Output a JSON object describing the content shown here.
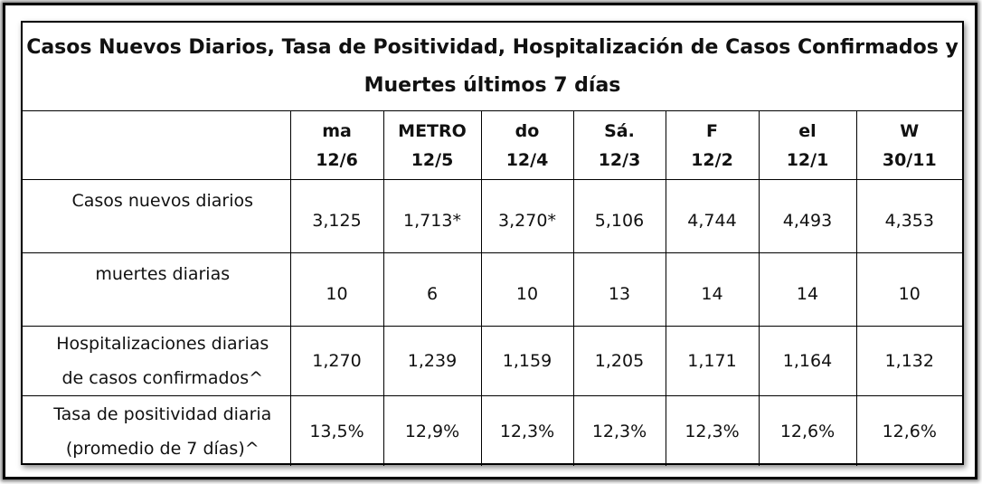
{
  "title_line1": "Casos Nuevos Diarios, Tasa de Positividad, Hospitalización de Casos Confirmados y",
  "title_line2": "Muertes últimos 7 días",
  "columns": [
    {
      "day": "ma",
      "date": "12/6"
    },
    {
      "day": "METRO",
      "date": "12/5"
    },
    {
      "day": "do",
      "date": "12/4"
    },
    {
      "day": "Sá.",
      "date": "12/3"
    },
    {
      "day": "F",
      "date": "12/2"
    },
    {
      "day": "el",
      "date": "12/1"
    },
    {
      "day": "W",
      "date": "30/11"
    }
  ],
  "rows": [
    {
      "label": "Casos nuevos diarios",
      "values": [
        "3,125",
        "1,713*",
        "3,270*",
        "5,106",
        "4,744",
        "4,493",
        "4,353"
      ]
    },
    {
      "label": "muertes diarias",
      "values": [
        "10",
        "6",
        "10",
        "13",
        "14",
        "14",
        "10"
      ]
    },
    {
      "label_line1": "Hospitalizaciones diarias",
      "label_line2": "de casos confirmados^",
      "values": [
        "1,270",
        "1,239",
        "1,159",
        "1,205",
        "1,171",
        "1,164",
        "1,132"
      ]
    },
    {
      "label_line1": "Tasa de positividad diaria",
      "label_line2": "(promedio de 7 días)^",
      "values": [
        "13,5%",
        "12,9%",
        "12,3%",
        "12,3%",
        "12,3%",
        "12,6%",
        "12,6%"
      ]
    }
  ]
}
